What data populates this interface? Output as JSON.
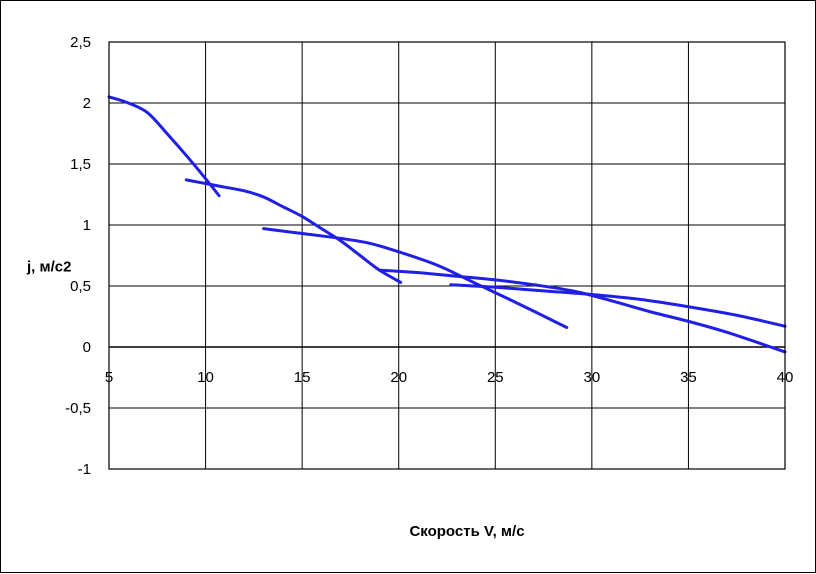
{
  "chart_data": {
    "type": "line",
    "title": "",
    "xlabel": "Скорость V, м/с",
    "ylabel": "j, м/с2",
    "xlim": [
      5,
      40
    ],
    "ylim": [
      -1,
      2.5
    ],
    "x_ticks": [
      5,
      10,
      15,
      20,
      25,
      30,
      35,
      40
    ],
    "x_tick_labels": [
      "5",
      "10",
      "15",
      "20",
      "25",
      "30",
      "35",
      "40"
    ],
    "y_ticks": [
      2.5,
      2,
      1.5,
      1,
      0.5,
      0,
      -0.5,
      -1
    ],
    "y_tick_labels": [
      "2,5",
      "2",
      "1,5",
      "1",
      "0,5",
      "0",
      "-0,5",
      "-1"
    ],
    "grid": true,
    "legend": "none",
    "line_color": "#1f1fe6",
    "series": [
      {
        "x": [
          5.0,
          6.0,
          7.0,
          8.0,
          9.0,
          10.0,
          10.7
        ],
        "values": [
          2.05,
          2.0,
          1.92,
          1.75,
          1.57,
          1.38,
          1.24
        ]
      },
      {
        "x": [
          9.0,
          10.0,
          11.0,
          12.0,
          13.0,
          14.0,
          15.0,
          16.0,
          17.0,
          18.0,
          19.0,
          20.1
        ],
        "values": [
          1.37,
          1.34,
          1.31,
          1.28,
          1.23,
          1.15,
          1.07,
          0.97,
          0.87,
          0.75,
          0.63,
          0.53
        ]
      },
      {
        "x": [
          13.0,
          15.0,
          17.0,
          18.5,
          20.0,
          22.0,
          24.0,
          26.0,
          28.7
        ],
        "values": [
          0.97,
          0.93,
          0.89,
          0.85,
          0.78,
          0.67,
          0.52,
          0.37,
          0.16
        ]
      },
      {
        "x": [
          19.0,
          21.0,
          23.0,
          25.0,
          27.0,
          29.0,
          31.0,
          33.0,
          35.0,
          37.0,
          40.0
        ],
        "values": [
          0.63,
          0.61,
          0.58,
          0.55,
          0.51,
          0.46,
          0.38,
          0.29,
          0.21,
          0.12,
          -0.04
        ]
      },
      {
        "x": [
          22.7,
          25.0,
          27.5,
          30.0,
          32.5,
          35.0,
          37.5,
          40.0
        ],
        "values": [
          0.51,
          0.49,
          0.46,
          0.43,
          0.39,
          0.33,
          0.26,
          0.17
        ]
      }
    ]
  }
}
